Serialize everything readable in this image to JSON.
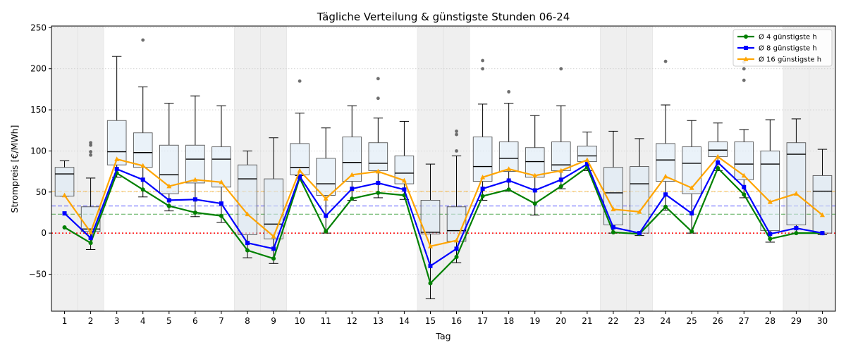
{
  "chart_data": {
    "type": "box+line",
    "title": "Tägliche Verteilung & günstigste Stunden 06-24",
    "xlabel": "Tag",
    "ylabel": "Strompreis [€/MWh]",
    "ylim": [
      -95,
      252
    ],
    "yticks": [
      -50,
      0,
      50,
      100,
      150,
      200,
      250
    ],
    "grid": "horizontal dotted",
    "legend_position": "top-right",
    "days": [
      1,
      2,
      3,
      4,
      5,
      6,
      7,
      8,
      9,
      10,
      11,
      12,
      13,
      14,
      15,
      16,
      17,
      18,
      19,
      20,
      21,
      22,
      23,
      24,
      25,
      26,
      27,
      28,
      29,
      30
    ],
    "weekend_days": [
      1,
      2,
      8,
      9,
      15,
      16,
      22,
      23,
      29,
      30
    ],
    "boxes": [
      {
        "day": 1,
        "whislo": 45,
        "q1": 45,
        "med": 72,
        "q3": 80,
        "whishi": 88,
        "fliers": []
      },
      {
        "day": 2,
        "whislo": -20,
        "q1": 2,
        "med": 5,
        "q3": 32,
        "whishi": 67,
        "fliers": [
          95,
          99,
          107,
          110
        ]
      },
      {
        "day": 3,
        "whislo": 68,
        "q1": 83,
        "med": 99,
        "q3": 137,
        "whishi": 215,
        "fliers": []
      },
      {
        "day": 4,
        "whislo": 44,
        "q1": 80,
        "med": 98,
        "q3": 122,
        "whishi": 178,
        "fliers": [
          235
        ]
      },
      {
        "day": 5,
        "whislo": 27,
        "q1": 48,
        "med": 71,
        "q3": 107,
        "whishi": 158,
        "fliers": []
      },
      {
        "day": 6,
        "whislo": 20,
        "q1": 61,
        "med": 90,
        "q3": 107,
        "whishi": 167,
        "fliers": []
      },
      {
        "day": 7,
        "whislo": 13,
        "q1": 56,
        "med": 90,
        "q3": 105,
        "whishi": 155,
        "fliers": []
      },
      {
        "day": 8,
        "whislo": -30,
        "q1": -2,
        "med": 66,
        "q3": 83,
        "whishi": 100,
        "fliers": []
      },
      {
        "day": 9,
        "whislo": -37,
        "q1": -7,
        "med": 11,
        "q3": 66,
        "whishi": 116,
        "fliers": []
      },
      {
        "day": 10,
        "whislo": 70,
        "q1": 71,
        "med": 80,
        "q3": 109,
        "whishi": 146,
        "fliers": [
          185
        ]
      },
      {
        "day": 11,
        "whislo": 0,
        "q1": 46,
        "med": 60,
        "q3": 91,
        "whishi": 128,
        "fliers": []
      },
      {
        "day": 12,
        "whislo": 40,
        "q1": 63,
        "med": 86,
        "q3": 117,
        "whishi": 155,
        "fliers": []
      },
      {
        "day": 13,
        "whislo": 43,
        "q1": 76,
        "med": 85,
        "q3": 110,
        "whishi": 140,
        "fliers": [
          164,
          188
        ]
      },
      {
        "day": 14,
        "whislo": 41,
        "q1": 60,
        "med": 73,
        "q3": 94,
        "whishi": 136,
        "fliers": []
      },
      {
        "day": 15,
        "whislo": -80,
        "q1": -1,
        "med": 1,
        "q3": 40,
        "whishi": 84,
        "fliers": []
      },
      {
        "day": 16,
        "whislo": -36,
        "q1": -10,
        "med": 3,
        "q3": 32,
        "whishi": 94,
        "fliers": [
          100,
          120,
          124
        ]
      },
      {
        "day": 17,
        "whislo": 40,
        "q1": 63,
        "med": 81,
        "q3": 117,
        "whishi": 157,
        "fliers": [
          200,
          210
        ]
      },
      {
        "day": 18,
        "whislo": 51,
        "q1": 75,
        "med": 91,
        "q3": 111,
        "whishi": 158,
        "fliers": [
          172
        ]
      },
      {
        "day": 19,
        "whislo": 22,
        "q1": 68,
        "med": 87,
        "q3": 104,
        "whishi": 143,
        "fliers": []
      },
      {
        "day": 20,
        "whislo": 54,
        "q1": 76,
        "med": 83,
        "q3": 111,
        "whishi": 155,
        "fliers": [
          200
        ]
      },
      {
        "day": 21,
        "whislo": 76,
        "q1": 87,
        "med": 94,
        "q3": 106,
        "whishi": 123,
        "fliers": []
      },
      {
        "day": 22,
        "whislo": 0,
        "q1": 10,
        "med": 49,
        "q3": 80,
        "whishi": 124,
        "fliers": []
      },
      {
        "day": 23,
        "whislo": -3,
        "q1": 0,
        "med": 60,
        "q3": 81,
        "whishi": 115,
        "fliers": []
      },
      {
        "day": 24,
        "whislo": 28,
        "q1": 63,
        "med": 89,
        "q3": 109,
        "whishi": 156,
        "fliers": [
          209
        ]
      },
      {
        "day": 25,
        "whislo": 0,
        "q1": 48,
        "med": 85,
        "q3": 105,
        "whishi": 137,
        "fliers": []
      },
      {
        "day": 26,
        "whislo": 76,
        "q1": 93,
        "med": 101,
        "q3": 111,
        "whishi": 134,
        "fliers": []
      },
      {
        "day": 27,
        "whislo": 43,
        "q1": 65,
        "med": 84,
        "q3": 111,
        "whishi": 126,
        "fliers": [
          186,
          200,
          208
        ]
      },
      {
        "day": 28,
        "whislo": -11,
        "q1": 3,
        "med": 84,
        "q3": 100,
        "whishi": 138,
        "fliers": []
      },
      {
        "day": 29,
        "whislo": 0,
        "q1": 10,
        "med": 96,
        "q3": 110,
        "whishi": 139,
        "fliers": []
      },
      {
        "day": 30,
        "whislo": -2,
        "q1": 0,
        "med": 51,
        "q3": 70,
        "whishi": 102,
        "fliers": []
      }
    ],
    "series": [
      {
        "name": "Ø 4 günstigste h",
        "color": "#008000",
        "marker": "circle",
        "values": [
          7,
          -12,
          73,
          53,
          33,
          25,
          21,
          -21,
          -31,
          67,
          2,
          42,
          49,
          46,
          -61,
          -29,
          45,
          53,
          36,
          57,
          80,
          1,
          -1,
          32,
          2,
          79,
          47,
          -7,
          0,
          0
        ]
      },
      {
        "name": "Ø 8 günstigste h",
        "color": "#0000ff",
        "marker": "square",
        "values": [
          24,
          -6,
          78,
          65,
          40,
          41,
          36,
          -12,
          -19,
          69,
          21,
          54,
          61,
          53,
          -40,
          -19,
          54,
          64,
          52,
          65,
          84,
          7,
          0,
          47,
          24,
          86,
          56,
          -1,
          6,
          0
        ]
      },
      {
        "name": "Ø 16 günstigste h",
        "color": "#ffa500",
        "marker": "triangle",
        "values": [
          46,
          1,
          90,
          82,
          57,
          65,
          62,
          23,
          -4,
          76,
          42,
          71,
          75,
          64,
          -16,
          -9,
          68,
          78,
          70,
          76,
          89,
          29,
          26,
          69,
          55,
          93,
          70,
          38,
          48,
          22
        ]
      }
    ],
    "reference_lines": [
      {
        "value": 51,
        "color": "#ffa500"
      },
      {
        "value": 33,
        "color": "#0000ff"
      },
      {
        "value": 23,
        "color": "#008000"
      },
      {
        "value": 0,
        "color": "#ff0000"
      }
    ]
  }
}
